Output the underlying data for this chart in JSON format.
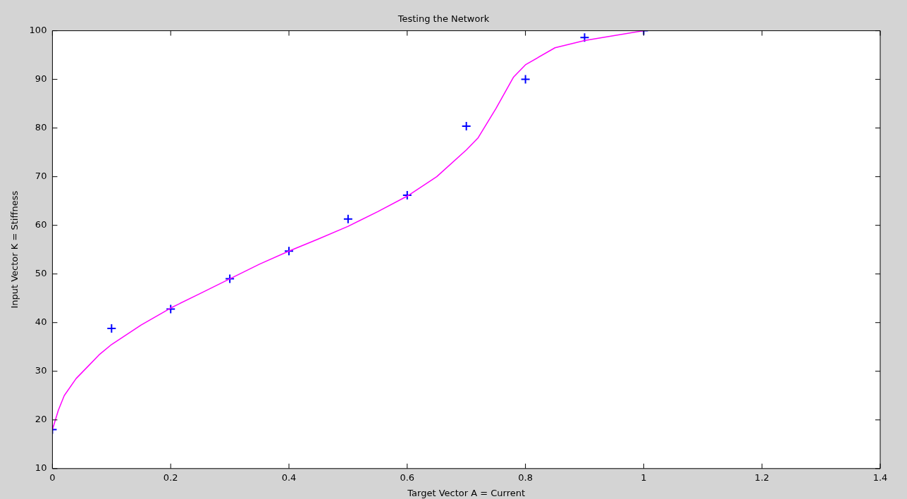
{
  "chart_data": {
    "type": "scatter",
    "title": "Testing the Network",
    "xlabel": "Target Vector A = Current",
    "ylabel": "Input Vector K = Stiffness",
    "xlim": [
      0,
      1.4
    ],
    "xticks": [
      0,
      0.2,
      0.4,
      0.6,
      0.8,
      1,
      1.2,
      1.4
    ],
    "ylim": [
      10,
      100
    ],
    "yticks": [
      10,
      20,
      30,
      40,
      50,
      60,
      70,
      80,
      90,
      100
    ],
    "grid": false,
    "legend": false,
    "series": [
      {
        "type": "line",
        "color": "#ff00ff",
        "marker": "none",
        "line_style": "solid",
        "x": [
          0,
          0.01,
          0.02,
          0.04,
          0.06,
          0.08,
          0.1,
          0.15,
          0.2,
          0.25,
          0.3,
          0.35,
          0.4,
          0.45,
          0.5,
          0.55,
          0.6,
          0.65,
          0.7,
          0.72,
          0.75,
          0.78,
          0.8,
          0.85,
          0.9,
          0.95,
          1
        ],
        "values": [
          18,
          22,
          25,
          28.5,
          31,
          33.5,
          35.5,
          39.5,
          43,
          46,
          49,
          52,
          54.7,
          57.2,
          59.8,
          62.8,
          66,
          70,
          75.5,
          78,
          84,
          90.5,
          93,
          96.5,
          98,
          99,
          100
        ]
      },
      {
        "type": "scatter",
        "color": "#0000ff",
        "marker": "cross",
        "x": [
          0,
          0.1,
          0.2,
          0.3,
          0.4,
          0.5,
          0.6,
          0.7,
          0.8,
          0.9,
          1
        ],
        "values": [
          18,
          38.8,
          42.8,
          49,
          54.7,
          61.3,
          66.2,
          80.4,
          90,
          98.6,
          100
        ]
      }
    ]
  }
}
